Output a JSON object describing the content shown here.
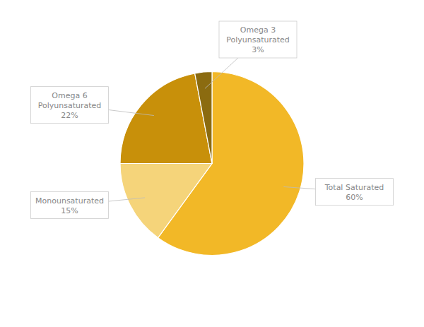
{
  "chart_data": {
    "type": "pie",
    "categories": [
      "Total Saturated\n60%",
      "Monounsaturated\n15%",
      "Omega 6\nPolyunsaturated\n22%",
      "Omega 3\nPolyunsaturated\n3%"
    ],
    "values": [
      60,
      15,
      22,
      3
    ],
    "colors": [
      "#F2B827",
      "#F5D47A",
      "#C8900A",
      "#8B6B10"
    ],
    "data_labels": true
  }
}
